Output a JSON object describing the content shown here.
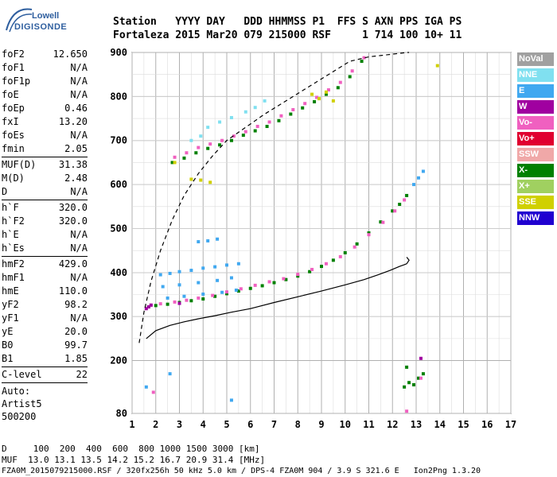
{
  "logo": {
    "line1": "Lowell",
    "line2": "DIGISONDE"
  },
  "header": {
    "labels": "Station   YYYY DAY   DDD HHMMSS P1  FFS S AXN PPS IGA PS",
    "values": "Fortaleza 2015 Mar20 079 215000 RSF     1 714 100 10+ 11"
  },
  "params": {
    "group1": [
      {
        "k": "foF2",
        "v": "12.650"
      },
      {
        "k": "foF1",
        "v": "N/A"
      },
      {
        "k": "foF1p",
        "v": "N/A"
      },
      {
        "k": "foE",
        "v": "N/A"
      },
      {
        "k": "foEp",
        "v": "0.46"
      },
      {
        "k": "fxI",
        "v": "13.20"
      },
      {
        "k": "foEs",
        "v": "N/A"
      },
      {
        "k": "fmin",
        "v": "2.05"
      }
    ],
    "group2": [
      {
        "k": "MUF(D)",
        "v": "31.38"
      },
      {
        "k": "M(D)",
        "v": "2.48"
      },
      {
        "k": "D",
        "v": "N/A"
      }
    ],
    "group3": [
      {
        "k": "h`F",
        "v": "320.0"
      },
      {
        "k": "h`F2",
        "v": "320.0"
      },
      {
        "k": "h`E",
        "v": "N/A"
      },
      {
        "k": "h`Es",
        "v": "N/A"
      }
    ],
    "group4": [
      {
        "k": "hmF2",
        "v": "429.0"
      },
      {
        "k": "hmF1",
        "v": "N/A"
      },
      {
        "k": "hmE",
        "v": "110.0"
      },
      {
        "k": "yF2",
        "v": "98.2"
      },
      {
        "k": "yF1",
        "v": "N/A"
      },
      {
        "k": "yE",
        "v": "20.0"
      },
      {
        "k": "B0",
        "v": "99.7"
      },
      {
        "k": "B1",
        "v": "1.85"
      }
    ],
    "group5": [
      {
        "k": "C-level",
        "v": "22"
      }
    ],
    "auto": [
      "Auto:",
      "Artist5",
      "500200"
    ]
  },
  "legend": [
    {
      "label": "NoVal",
      "color": "#a0a0a0"
    },
    {
      "label": "NNE",
      "color": "#80e0f0"
    },
    {
      "label": "E",
      "color": "#40a8f0"
    },
    {
      "label": "W",
      "color": "#a000a0"
    },
    {
      "label": "Vo-",
      "color": "#f060c0"
    },
    {
      "label": "Vo+",
      "color": "#e00030"
    },
    {
      "label": "SSW",
      "color": "#f0a8a8"
    },
    {
      "label": "X-",
      "color": "#008000"
    },
    {
      "label": "X+",
      "color": "#a0d060"
    },
    {
      "label": "SSE",
      "color": "#d0d000"
    },
    {
      "label": "NNW",
      "color": "#2000d0"
    }
  ],
  "footer": {
    "line1": "D     100  200  400  600  800 1000 1500 3000 [km]",
    "line2": "MUF  13.0 13.1 13.5 14.2 15.2 16.7 20.9 31.4 [MHz]",
    "line3": "FZA0M_2015079215000.RSF / 320fx256h 50 kHz 5.0 km / DPS-4 FZA0M 904 / 3.9 S 321.6 E   Ion2Png 1.3.20"
  },
  "chart_data": {
    "type": "scatter",
    "title": "",
    "xlabel": "",
    "ylabel": "",
    "xlim": [
      1,
      17
    ],
    "ylim": [
      80,
      900
    ],
    "xticks": [
      1,
      2,
      3,
      4,
      5,
      6,
      7,
      8,
      9,
      10,
      11,
      12,
      13,
      14,
      15,
      16,
      17
    ],
    "yticks": [
      80,
      200,
      300,
      400,
      500,
      600,
      700,
      800,
      900
    ],
    "grid": true,
    "series": [
      {
        "kind": "scatter",
        "color": "#008000",
        "x": [
          1.7,
          2.0,
          2.5,
          3.0,
          3.5,
          4.0,
          4.5,
          5.0,
          5.5,
          6.0,
          6.5,
          7.0,
          7.5,
          8.0,
          8.5,
          9.0,
          9.5,
          10.0,
          10.5,
          11.0,
          11.5,
          12.0,
          12.3,
          12.6
        ],
        "y": [
          322,
          325,
          328,
          332,
          336,
          340,
          346,
          352,
          358,
          364,
          370,
          377,
          384,
          392,
          402,
          414,
          428,
          445,
          465,
          490,
          515,
          540,
          555,
          575
        ]
      },
      {
        "kind": "scatter",
        "color": "#f060c0",
        "x": [
          1.8,
          2.2,
          2.8,
          3.3,
          3.8,
          4.4,
          5.0,
          5.6,
          6.2,
          6.8,
          7.4,
          8.0,
          8.6,
          9.2,
          9.8,
          10.4,
          11.0,
          11.6,
          12.1,
          12.5
        ],
        "y": [
          326,
          329,
          333,
          337,
          342,
          348,
          356,
          363,
          371,
          379,
          386,
          396,
          407,
          420,
          436,
          458,
          486,
          514,
          540,
          565
        ]
      },
      {
        "kind": "scatter",
        "color": "#40a8f0",
        "x": [
          2.2,
          2.6,
          3.0,
          3.5,
          4.0,
          4.5,
          5.0,
          5.5,
          2.3,
          3.0,
          3.8,
          4.6,
          5.2,
          2.5,
          3.2,
          4.0,
          4.8,
          5.4,
          3.8,
          4.2,
          4.6,
          12.9,
          13.1,
          13.3
        ],
        "y": [
          395,
          398,
          402,
          405,
          410,
          413,
          417,
          420,
          368,
          372,
          377,
          382,
          388,
          342,
          346,
          351,
          355,
          360,
          470,
          472,
          476,
          600,
          615,
          630
        ]
      },
      {
        "kind": "scatter",
        "color": "#008000",
        "x": [
          2.7,
          3.2,
          3.7,
          4.2,
          4.7,
          5.2,
          5.7,
          6.2,
          6.7,
          7.2,
          7.7,
          8.2,
          8.7,
          9.2,
          9.7,
          10.2,
          10.7
        ],
        "y": [
          650,
          660,
          672,
          682,
          690,
          700,
          712,
          722,
          732,
          745,
          760,
          774,
          788,
          805,
          820,
          845,
          880
        ]
      },
      {
        "kind": "scatter",
        "color": "#f060c0",
        "x": [
          2.8,
          3.3,
          3.8,
          4.3,
          4.8,
          5.3,
          5.8,
          6.3,
          6.8,
          7.3,
          7.8,
          8.3,
          8.8,
          9.3,
          9.8,
          10.3,
          10.8
        ],
        "y": [
          662,
          672,
          684,
          692,
          700,
          710,
          720,
          732,
          742,
          756,
          770,
          784,
          798,
          815,
          832,
          858,
          888
        ]
      },
      {
        "kind": "scatter",
        "color": "#d0d000",
        "x": [
          3.5,
          3.9,
          4.3,
          8.6,
          8.9,
          9.2,
          9.5,
          2.8,
          13.9
        ],
        "y": [
          612,
          610,
          605,
          805,
          795,
          810,
          790,
          650,
          870
        ]
      },
      {
        "kind": "scatter",
        "color": "#80e0f0",
        "x": [
          4.2,
          4.7,
          5.2,
          5.8,
          6.2,
          6.6,
          3.5,
          3.9
        ],
        "y": [
          730,
          742,
          752,
          765,
          775,
          790,
          700,
          710
        ]
      },
      {
        "kind": "scatter",
        "color": "#a000a0",
        "x": [
          1.6,
          1.7,
          1.8,
          3.0,
          13.2
        ],
        "y": [
          318,
          322,
          326,
          330,
          205
        ]
      },
      {
        "kind": "scatter",
        "color": "#008000",
        "x": [
          12.5,
          12.7,
          12.9,
          13.1,
          13.3,
          12.6
        ],
        "y": [
          140,
          150,
          145,
          160,
          170,
          185
        ]
      },
      {
        "kind": "scatter",
        "color": "#40a8f0",
        "x": [
          1.6,
          2.6,
          5.2
        ],
        "y": [
          140,
          170,
          110
        ]
      },
      {
        "kind": "scatter",
        "color": "#f060c0",
        "x": [
          12.6,
          13.2,
          1.9
        ],
        "y": [
          85,
          160,
          128
        ]
      },
      {
        "kind": "line",
        "style": "solid",
        "color": "#000000",
        "x": [
          1.6,
          2.0,
          2.6,
          3.2,
          3.8,
          4.5,
          5.2,
          6.0,
          7.0,
          8.0,
          9.0,
          10.0,
          10.8,
          11.4,
          11.9,
          12.3,
          12.6,
          12.7,
          12.6
        ],
        "y": [
          250,
          268,
          280,
          288,
          295,
          302,
          310,
          318,
          332,
          345,
          358,
          372,
          384,
          395,
          405,
          414,
          420,
          428,
          435
        ]
      },
      {
        "kind": "line",
        "style": "dashed",
        "color": "#000000",
        "x": [
          1.3,
          1.5,
          1.8,
          2.2,
          2.7,
          3.2,
          3.8,
          4.4,
          5.0,
          5.8,
          6.6,
          7.5,
          8.4,
          9.3,
          10.2,
          11.0,
          11.8,
          12.3,
          12.6,
          12.7
        ],
        "y": [
          240,
          310,
          380,
          450,
          520,
          575,
          625,
          665,
          700,
          730,
          760,
          790,
          820,
          850,
          880,
          890,
          895,
          898,
          900,
          900
        ]
      }
    ]
  }
}
